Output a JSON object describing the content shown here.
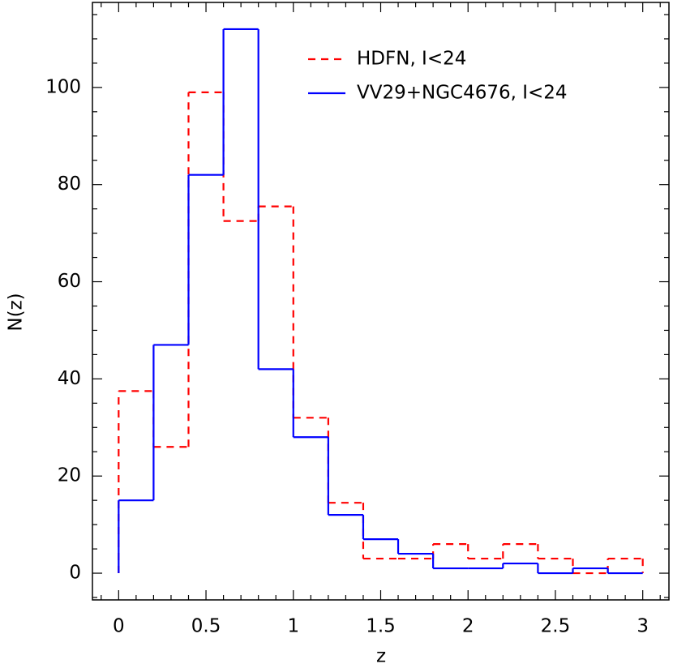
{
  "chart_data": {
    "type": "histogram",
    "xlabel": "z",
    "ylabel": "N(z)",
    "bins": [
      0,
      0.2,
      0.4,
      0.6,
      0.8,
      1.0,
      1.2,
      1.4,
      1.6,
      1.8,
      2.0,
      2.2,
      2.4,
      2.6,
      2.8,
      3.0
    ],
    "series": [
      {
        "name": "HDFN, I<24",
        "color": "#ff0000",
        "dash": "dashed",
        "values": [
          37.5,
          26,
          99,
          72.5,
          75.5,
          32,
          14.5,
          3,
          3,
          6,
          3,
          6,
          3,
          0,
          3
        ]
      },
      {
        "name": "VV29+NGC4676, I<24",
        "color": "#0000ff",
        "dash": "solid",
        "values": [
          15,
          47,
          82,
          112,
          42,
          28,
          12,
          7,
          4,
          1,
          1,
          2,
          0,
          1,
          0
        ]
      }
    ],
    "xlim": [
      -0.15,
      3.15
    ],
    "ylim": [
      -5.5,
      117.5
    ],
    "xticks": [
      0,
      0.5,
      1,
      1.5,
      2,
      2.5,
      3
    ],
    "yticks": [
      0,
      20,
      40,
      60,
      80,
      100
    ],
    "legend": "upper right"
  }
}
